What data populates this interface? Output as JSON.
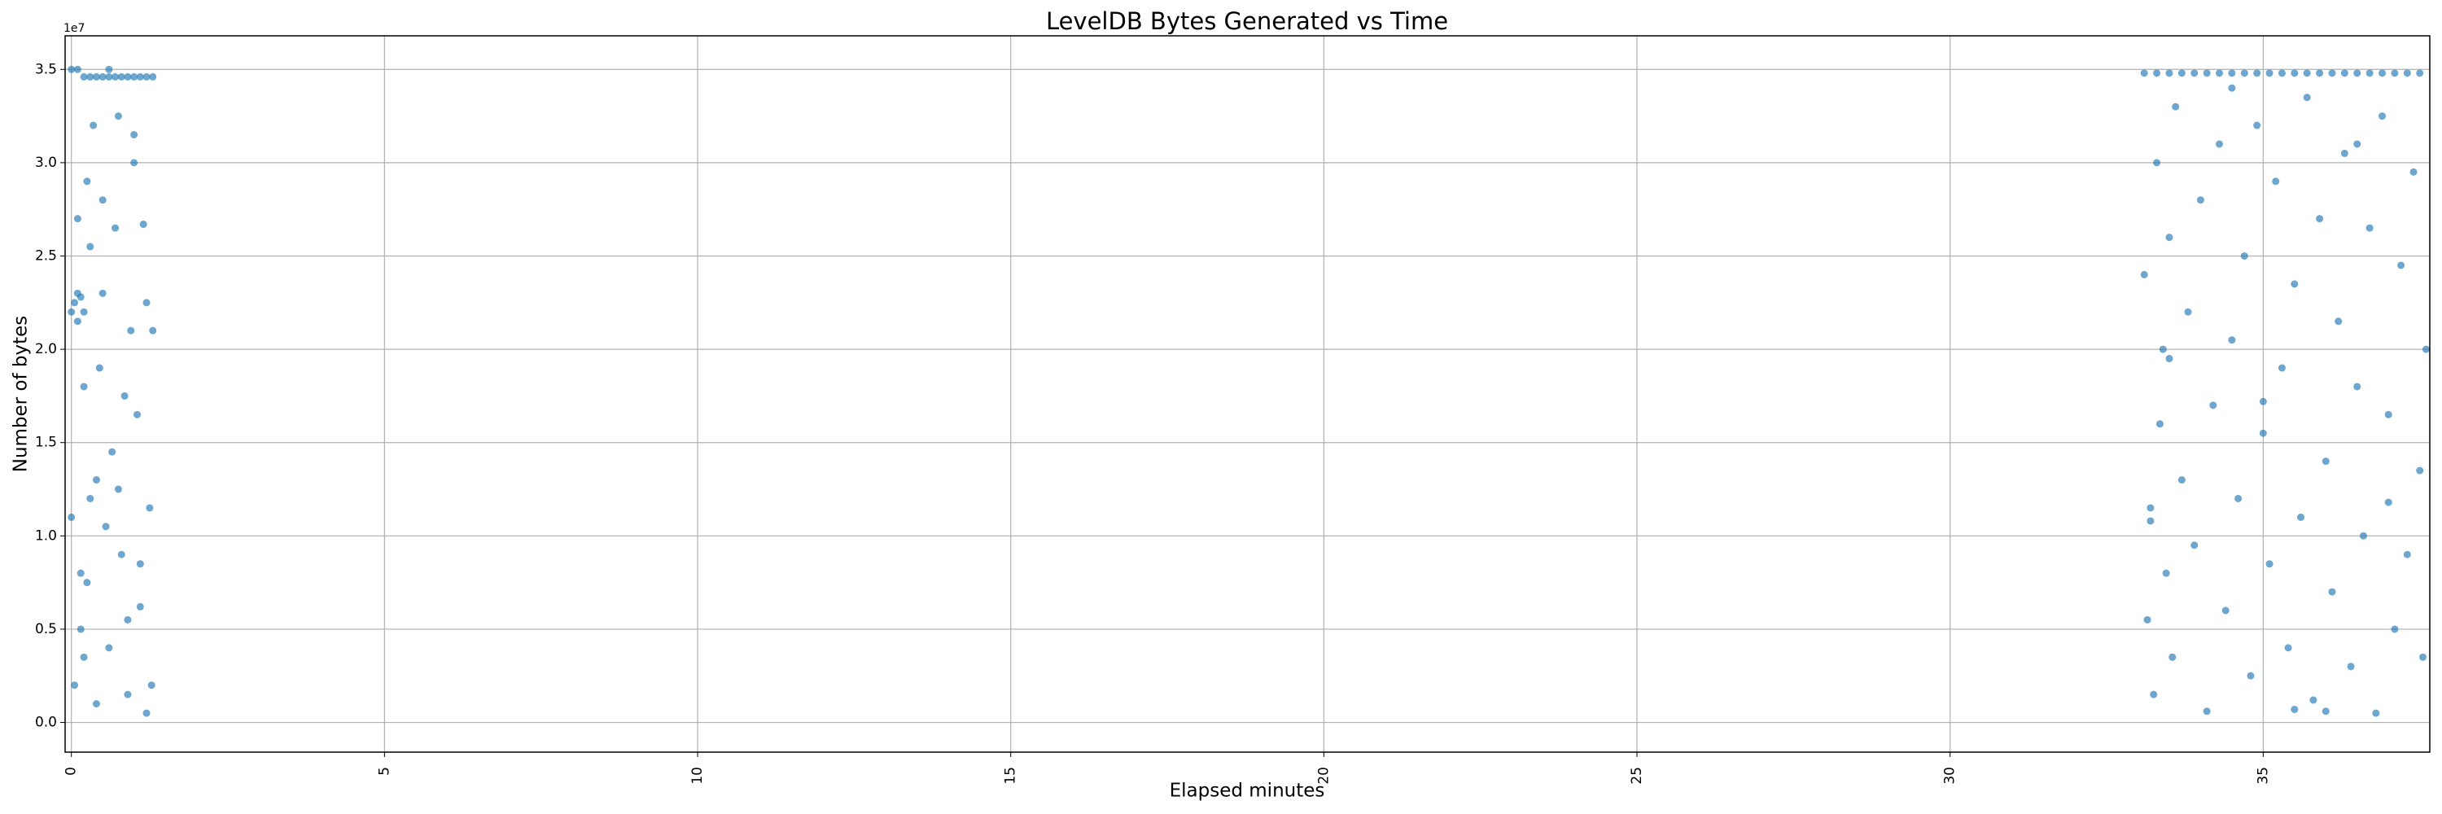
{
  "chart_data": {
    "type": "scatter",
    "title": "LevelDB Bytes Generated vs Time",
    "xlabel": "Elapsed minutes",
    "ylabel": "Number of bytes",
    "y_offset_label": "1e7",
    "color": "#1f77b4",
    "grid": true,
    "xlim": [
      -0.1,
      37.66
    ],
    "ylim": [
      -1590000,
      36800000
    ],
    "xticks": [
      0,
      5,
      10,
      15,
      20,
      25,
      30,
      35
    ],
    "yticks": [
      {
        "value": 0,
        "label": "0.0"
      },
      {
        "value": 5000000,
        "label": "0.5"
      },
      {
        "value": 10000000,
        "label": "1.0"
      },
      {
        "value": 15000000,
        "label": "1.5"
      },
      {
        "value": 20000000,
        "label": "2.0"
      },
      {
        "value": 25000000,
        "label": "2.5"
      },
      {
        "value": 30000000,
        "label": "3.0"
      },
      {
        "value": 35000000,
        "label": "3.5"
      }
    ],
    "x": [
      0.0,
      0.1,
      0.2,
      0.3,
      0.4,
      0.5,
      0.6,
      0.7,
      0.8,
      0.9,
      1.0,
      1.1,
      1.2,
      1.3,
      33.1,
      33.3,
      33.5,
      33.7,
      33.9,
      34.1,
      34.3,
      34.5,
      34.7,
      34.9,
      35.1,
      35.3,
      35.5,
      35.7,
      35.9,
      36.1,
      36.3,
      36.5,
      36.7,
      36.9,
      37.1,
      37.3,
      37.5,
      0.0,
      0.05,
      0.1,
      0.15,
      0.2,
      0.1,
      0.0,
      0.05,
      0.1,
      0.15,
      0.2,
      0.25,
      0.3,
      0.2,
      0.3,
      0.35,
      0.4,
      0.45,
      0.5,
      0.55,
      0.6,
      0.65,
      0.7,
      0.75,
      0.8,
      0.85,
      0.9,
      0.95,
      1.0,
      1.05,
      1.1,
      1.15,
      1.2,
      1.25,
      1.3,
      1.28,
      0.25,
      0.5,
      0.6,
      0.75,
      1.0,
      1.1,
      0.4,
      0.15,
      0.9,
      1.2,
      33.1,
      33.15,
      33.2,
      33.25,
      33.3,
      33.35,
      33.4,
      33.45,
      33.5,
      33.55,
      33.6,
      33.7,
      33.8,
      33.9,
      34.0,
      34.1,
      34.2,
      34.3,
      34.4,
      34.5,
      34.6,
      34.7,
      34.8,
      34.9,
      35.0,
      35.1,
      35.2,
      35.3,
      35.4,
      35.5,
      35.6,
      35.7,
      35.8,
      35.9,
      36.0,
      36.1,
      36.2,
      36.3,
      36.4,
      36.5,
      36.6,
      36.7,
      36.8,
      36.9,
      37.0,
      37.1,
      37.2,
      37.3,
      37.4,
      37.5,
      37.6,
      37.55,
      33.2,
      35.0,
      36.0,
      34.5,
      33.5,
      36.5,
      35.5,
      37.0
    ],
    "y": [
      35000000,
      35000000,
      34600000,
      34600000,
      34600000,
      34600000,
      34600000,
      34600000,
      34600000,
      34600000,
      34600000,
      34600000,
      34600000,
      34600000,
      34800000,
      34800000,
      34800000,
      34800000,
      34800000,
      34800000,
      34800000,
      34800000,
      34800000,
      34800000,
      34800000,
      34800000,
      34800000,
      34800000,
      34800000,
      34800000,
      34800000,
      34800000,
      34800000,
      34800000,
      34800000,
      34800000,
      34800000,
      22000000,
      22500000,
      21500000,
      22800000,
      22000000,
      23000000,
      11000000,
      2000000,
      27000000,
      5000000,
      18000000,
      7500000,
      12000000,
      3500000,
      25500000,
      32000000,
      1000000,
      19000000,
      28000000,
      10500000,
      4000000,
      14500000,
      26500000,
      32500000,
      9000000,
      17500000,
      5500000,
      21000000,
      30000000,
      16500000,
      8500000,
      26700000,
      500000,
      11500000,
      21000000,
      2000000,
      29000000,
      23000000,
      35000000,
      12500000,
      31500000,
      6200000,
      13000000,
      8000000,
      1500000,
      22500000,
      24000000,
      5500000,
      11500000,
      1500000,
      30000000,
      16000000,
      20000000,
      8000000,
      26000000,
      3500000,
      33000000,
      13000000,
      22000000,
      9500000,
      28000000,
      600000,
      17000000,
      31000000,
      6000000,
      20500000,
      12000000,
      25000000,
      2500000,
      32000000,
      15500000,
      8500000,
      29000000,
      19000000,
      4000000,
      23500000,
      11000000,
      33500000,
      1200000,
      27000000,
      14000000,
      7000000,
      21500000,
      30500000,
      3000000,
      18000000,
      10000000,
      26500000,
      500000,
      32500000,
      16500000,
      5000000,
      24500000,
      9000000,
      29500000,
      13500000,
      20000000,
      3500000,
      10800000,
      17200000,
      600000,
      34000000,
      19500000,
      31000000,
      700000,
      11800000
    ]
  }
}
